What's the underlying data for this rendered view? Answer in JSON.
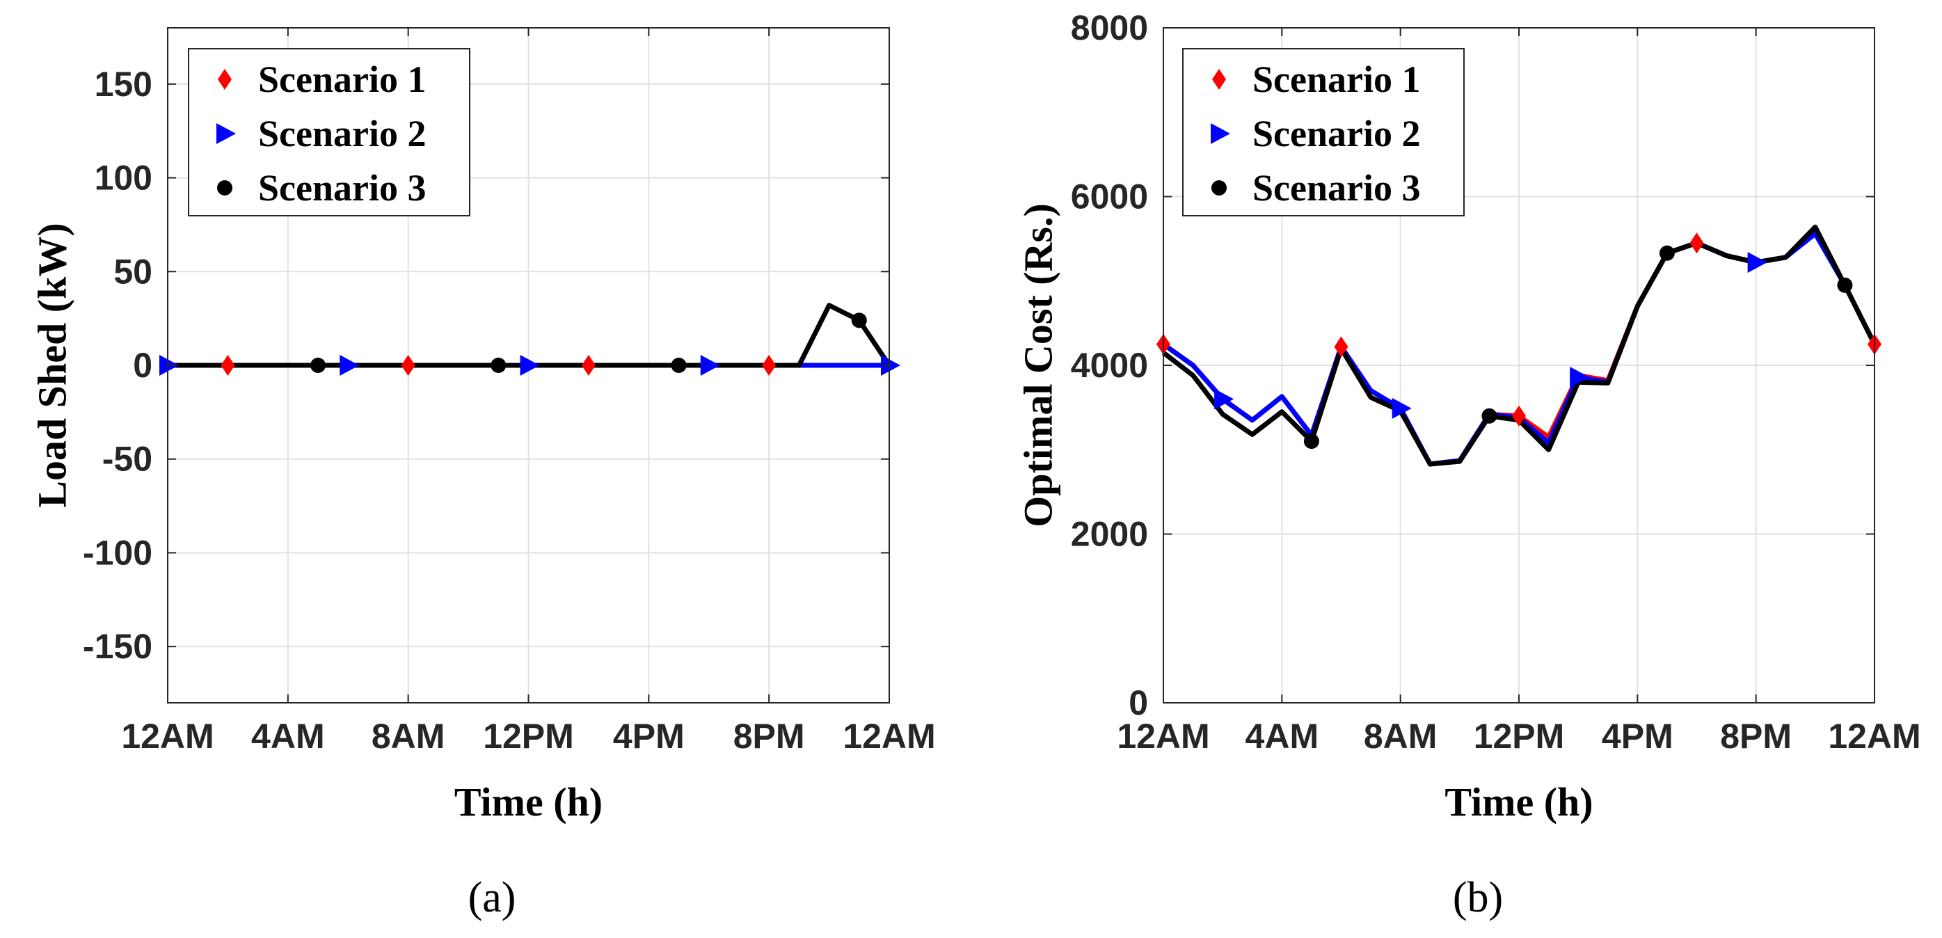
{
  "colors": {
    "scenario1": "#ff0000",
    "scenario2": "#0000ff",
    "scenario3": "#000000",
    "grid": "#e1e1e1",
    "axis": "#262626"
  },
  "chart_data": [
    {
      "type": "line",
      "caption": "(a)",
      "title": "",
      "xlabel": "Time (h)",
      "ylabel": "Load Shed (kW)",
      "xlim": [
        0,
        24
      ],
      "ylim": [
        -180,
        180
      ],
      "x_ticks": [
        0,
        4,
        8,
        12,
        16,
        20,
        24
      ],
      "x_tick_labels": [
        "12AM",
        "4AM",
        "8AM",
        "12PM",
        "4PM",
        "8PM",
        "12AM"
      ],
      "y_ticks": [
        -150,
        -100,
        -50,
        0,
        50,
        100,
        150
      ],
      "y_tick_labels": [
        "-150",
        "-100",
        "-50",
        "0",
        "50",
        "100",
        "150"
      ],
      "grid": true,
      "legend_position": "top-left",
      "x": [
        0,
        1,
        2,
        3,
        4,
        5,
        6,
        7,
        8,
        9,
        10,
        11,
        12,
        13,
        14,
        15,
        16,
        17,
        18,
        19,
        20,
        21,
        22,
        23,
        24
      ],
      "series": [
        {
          "name": "Scenario 1",
          "color": "#ff0000",
          "marker": "diamond",
          "marker_x": [
            2,
            8,
            14,
            20
          ],
          "values": [
            0,
            0,
            0,
            0,
            0,
            0,
            0,
            0,
            0,
            0,
            0,
            0,
            0,
            0,
            0,
            0,
            0,
            0,
            0,
            0,
            0,
            0,
            0,
            0,
            0
          ]
        },
        {
          "name": "Scenario 2",
          "color": "#0000ff",
          "marker": "triangle-right",
          "marker_x": [
            0,
            6,
            12,
            18,
            24
          ],
          "values": [
            0,
            0,
            0,
            0,
            0,
            0,
            0,
            0,
            0,
            0,
            0,
            0,
            0,
            0,
            0,
            0,
            0,
            0,
            0,
            0,
            0,
            0,
            0,
            0,
            0
          ]
        },
        {
          "name": "Scenario 3",
          "color": "#000000",
          "marker": "circle",
          "marker_x": [
            5,
            11,
            17,
            23
          ],
          "values": [
            0,
            0,
            0,
            0,
            0,
            0,
            0,
            0,
            0,
            0,
            0,
            0,
            0,
            0,
            0,
            0,
            0,
            0,
            0,
            0,
            0,
            0,
            32,
            24,
            0
          ]
        }
      ]
    },
    {
      "type": "line",
      "caption": "(b)",
      "title": "",
      "xlabel": "Time (h)",
      "ylabel": "Optimal Cost (Rs.)",
      "xlim": [
        0,
        24
      ],
      "ylim": [
        0,
        8000
      ],
      "x_ticks": [
        0,
        4,
        8,
        12,
        16,
        20,
        24
      ],
      "x_tick_labels": [
        "12AM",
        "4AM",
        "8AM",
        "12PM",
        "4PM",
        "8PM",
        "12AM"
      ],
      "y_ticks": [
        0,
        2000,
        4000,
        6000,
        8000
      ],
      "y_tick_labels": [
        "0",
        "2000",
        "4000",
        "6000",
        "8000"
      ],
      "grid": true,
      "legend_position": "top-left",
      "x": [
        0,
        1,
        2,
        3,
        4,
        5,
        6,
        7,
        8,
        9,
        10,
        11,
        12,
        13,
        14,
        15,
        16,
        17,
        18,
        19,
        20,
        21,
        22,
        23,
        24
      ],
      "series": [
        {
          "name": "Scenario 1",
          "color": "#ff0000",
          "marker": "diamond",
          "marker_x": [
            0,
            6,
            12,
            18,
            24
          ],
          "values": [
            4250,
            4000,
            3600,
            3350,
            3630,
            3170,
            4220,
            3700,
            3490,
            2830,
            2870,
            3420,
            3400,
            3150,
            3880,
            3820,
            4700,
            5330,
            5450,
            5300,
            5220,
            5280,
            5580,
            4950,
            4250
          ]
        },
        {
          "name": "Scenario 2",
          "color": "#0000ff",
          "marker": "triangle-right",
          "marker_x": [
            2,
            8,
            14,
            20
          ],
          "values": [
            4250,
            4000,
            3600,
            3350,
            3630,
            3170,
            4220,
            3700,
            3490,
            2830,
            2870,
            3420,
            3380,
            3080,
            3860,
            3800,
            4700,
            5330,
            5450,
            5300,
            5220,
            5280,
            5560,
            4950,
            4250
          ]
        },
        {
          "name": "Scenario 3",
          "color": "#000000",
          "marker": "circle",
          "marker_x": [
            5,
            11,
            17,
            23
          ],
          "values": [
            4150,
            3880,
            3420,
            3180,
            3450,
            3100,
            4200,
            3620,
            3460,
            2830,
            2860,
            3400,
            3350,
            3000,
            3800,
            3790,
            4700,
            5330,
            5450,
            5300,
            5220,
            5280,
            5640,
            4950,
            4250
          ]
        }
      ]
    }
  ]
}
